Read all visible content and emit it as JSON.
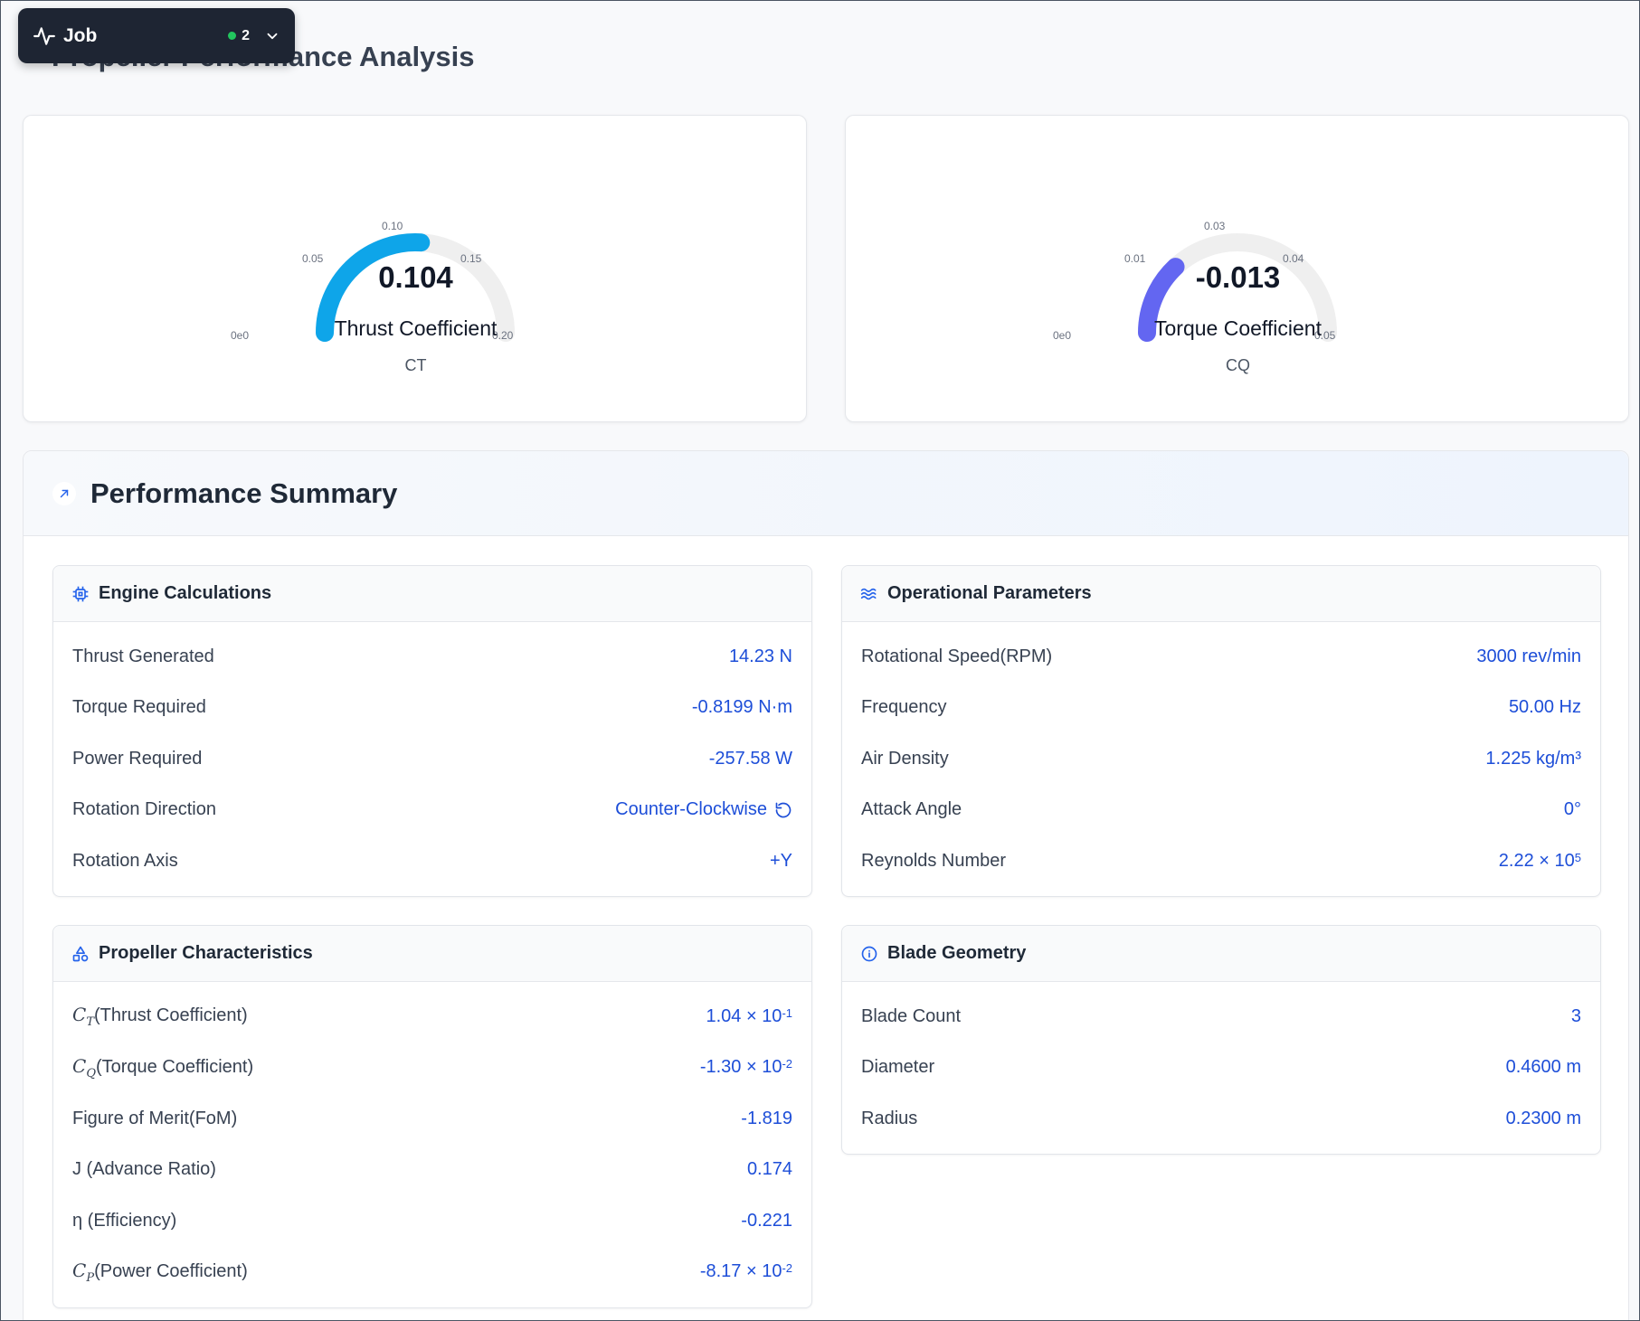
{
  "page": {
    "title": "Propeller Performance Analysis"
  },
  "job": {
    "label": "Job",
    "count": "2"
  },
  "gauges": [
    {
      "value": 0.104,
      "value_text": "0.104",
      "min": 0,
      "max": 0.2,
      "name": "Thrust Coefficient",
      "symbol": "CT",
      "color": "#0ea5e9",
      "ticks": [
        "0e0",
        "0.05",
        "0.10",
        "0.15",
        "0.20"
      ]
    },
    {
      "value": -0.013,
      "value_text": "-0.013",
      "min": 0,
      "max": 0.05,
      "name": "Torque Coefficient",
      "symbol": "CQ",
      "color": "#6366f1",
      "ticks": [
        "0e0",
        "0.01",
        "0.03",
        "0.04",
        "0.05"
      ]
    }
  ],
  "summary": {
    "title": "Performance Summary",
    "engine": {
      "title": "Engine Calculations",
      "rows": [
        {
          "label": "Thrust Generated",
          "value": "14.23 N"
        },
        {
          "label": "Torque Required",
          "value": "-0.8199 N·m"
        },
        {
          "label": "Power Required",
          "value": "-257.58 W"
        },
        {
          "label": "Rotation Direction",
          "value": "Counter-Clockwise"
        },
        {
          "label": "Rotation Axis",
          "value": "+Y"
        }
      ]
    },
    "operational": {
      "title": "Operational Parameters",
      "rows": [
        {
          "label": "Rotational Speed(RPM)",
          "value": "3000 rev/min"
        },
        {
          "label": "Frequency",
          "value": "50.00 Hz"
        },
        {
          "label": "Air Density",
          "value": "1.225 kg/m³"
        },
        {
          "label": "Attack Angle",
          "value": "0°"
        },
        {
          "label": "Reynolds Number",
          "value_base": "2.22 × 10",
          "value_exp": "5"
        }
      ]
    },
    "propeller": {
      "title": "Propeller Characteristics",
      "rows": [
        {
          "label_sym": "C",
          "label_sub": "T",
          "label": "(Thrust Coefficient)",
          "value_base": "1.04 × 10",
          "value_exp": "-1"
        },
        {
          "label_sym": "C",
          "label_sub": "Q",
          "label": "(Torque Coefficient)",
          "value_base": "-1.30 × 10",
          "value_exp": "-2"
        },
        {
          "label": "Figure of Merit(FoM)",
          "value": "-1.819"
        },
        {
          "label": "J (Advance Ratio)",
          "value": "0.174"
        },
        {
          "label": "η (Efficiency)",
          "value": "-0.221"
        },
        {
          "label_sym": "C",
          "label_sub": "P",
          "label": "(Power Coefficient)",
          "value_base": "-8.17 × 10",
          "value_exp": "-2"
        }
      ]
    },
    "blade": {
      "title": "Blade Geometry",
      "rows": [
        {
          "label": "Blade Count",
          "value": "3"
        },
        {
          "label": "Diameter",
          "value": "0.4600 m"
        },
        {
          "label": "Radius",
          "value": "0.2300 m"
        }
      ]
    }
  }
}
